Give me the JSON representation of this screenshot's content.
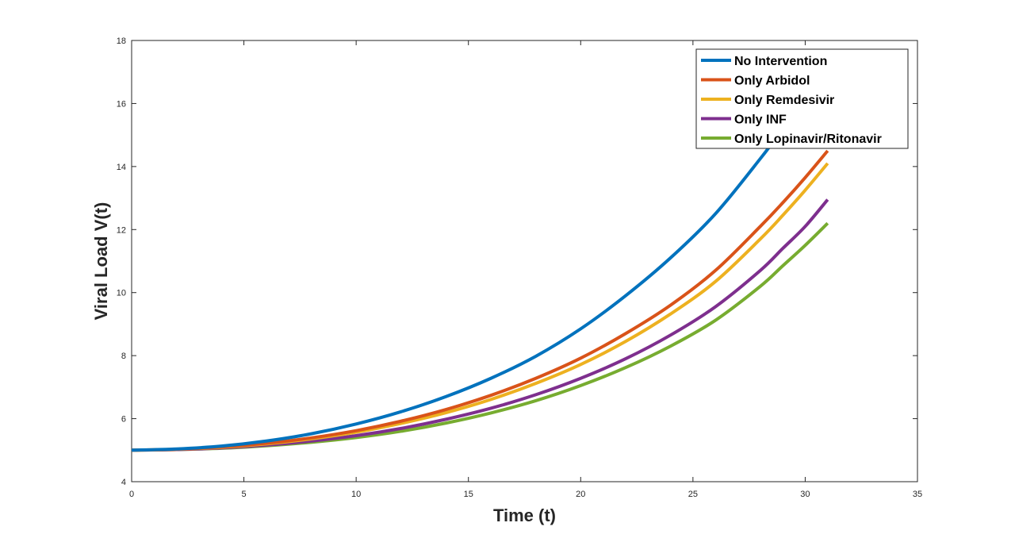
{
  "chart_data": {
    "type": "line",
    "xlabel": "Time (t)",
    "ylabel": "Viral Load V(t)",
    "xlim": [
      0,
      35
    ],
    "ylim": [
      4,
      18
    ],
    "xticks": [
      0,
      5,
      10,
      15,
      20,
      25,
      30,
      35
    ],
    "yticks": [
      4,
      6,
      8,
      10,
      12,
      14,
      16,
      18
    ],
    "grid": false,
    "legend_position": "top-right",
    "x": [
      0,
      2,
      4,
      6,
      8,
      10,
      12,
      14,
      16,
      18,
      20,
      22,
      24,
      26,
      28,
      29,
      30,
      31
    ],
    "series": [
      {
        "name": "No Intervention",
        "color": "#0072BD",
        "values": [
          5.0,
          5.04,
          5.13,
          5.29,
          5.52,
          5.83,
          6.22,
          6.7,
          7.28,
          7.98,
          8.85,
          9.9,
          11.1,
          12.5,
          14.25,
          15.2,
          16.2,
          17.2
        ]
      },
      {
        "name": "Only Arbidol",
        "color": "#D95319",
        "values": [
          5.0,
          5.03,
          5.1,
          5.22,
          5.39,
          5.62,
          5.92,
          6.29,
          6.74,
          7.28,
          7.92,
          8.7,
          9.6,
          10.7,
          12.1,
          12.85,
          13.65,
          14.5
        ]
      },
      {
        "name": "Only Remdesivir",
        "color": "#EDB120",
        "values": [
          5.0,
          5.03,
          5.09,
          5.2,
          5.36,
          5.57,
          5.85,
          6.19,
          6.61,
          7.12,
          7.72,
          8.45,
          9.32,
          10.35,
          11.7,
          12.45,
          13.25,
          14.1
        ]
      },
      {
        "name": "Only INF",
        "color": "#7E2F8E",
        "values": [
          5.0,
          5.02,
          5.07,
          5.16,
          5.29,
          5.46,
          5.69,
          5.98,
          6.33,
          6.76,
          7.28,
          7.9,
          8.65,
          9.55,
          10.7,
          11.4,
          12.1,
          12.95
        ]
      },
      {
        "name": "Only Lopinavir/Ritonavir",
        "color": "#77AC30",
        "values": [
          5.0,
          5.02,
          5.06,
          5.14,
          5.25,
          5.4,
          5.6,
          5.86,
          6.18,
          6.57,
          7.05,
          7.62,
          8.3,
          9.12,
          10.2,
          10.85,
          11.5,
          12.2
        ]
      }
    ]
  }
}
